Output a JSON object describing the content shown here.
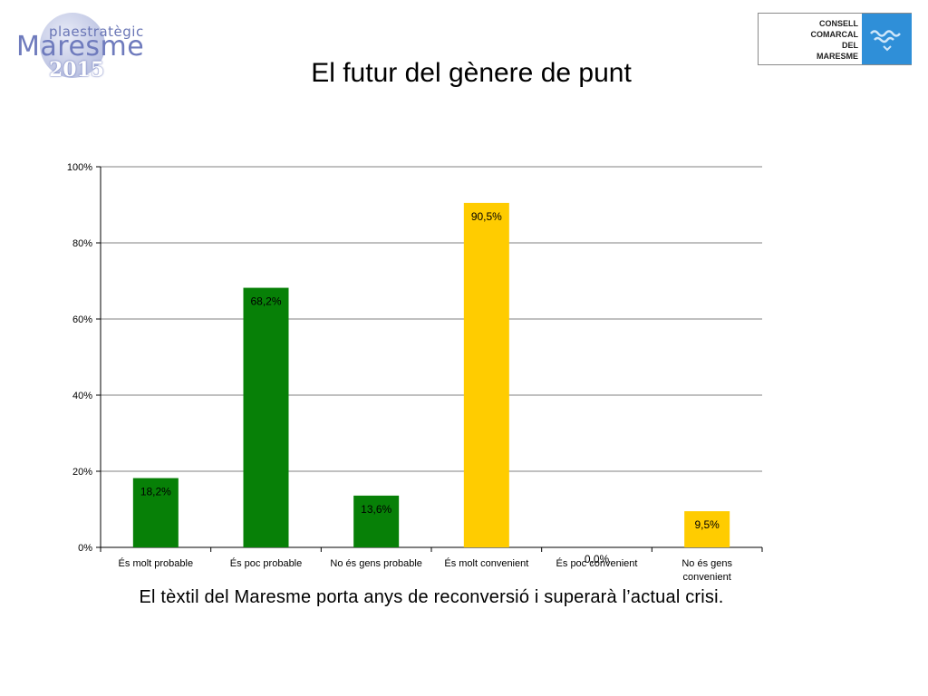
{
  "header": {
    "title": "El futur del gènere de punt",
    "logo_left": {
      "top_word": "plaestratègic",
      "main_word": "Maresme",
      "year": "2015"
    },
    "logo_right": {
      "lines": [
        "CONSELL",
        "COMARCAL",
        "DEL",
        "MARESME"
      ]
    }
  },
  "caption": "El tèxtil del Maresme porta anys de reconversió i superarà l’actual crisi.",
  "colors": {
    "green": "#078007",
    "yellow": "#FFCC00",
    "grid": "#808080"
  },
  "chart_data": {
    "type": "bar",
    "categories": [
      [
        "És molt probable"
      ],
      [
        "És poc probable"
      ],
      [
        "No és gens probable"
      ],
      [
        "És molt convenient"
      ],
      [
        "És poc convenient"
      ],
      [
        "No és gens",
        "convenient"
      ]
    ],
    "values": [
      18.2,
      68.2,
      13.6,
      90.5,
      0.0,
      9.5
    ],
    "data_labels": [
      "18,2%",
      "68,2%",
      "13,6%",
      "90,5%",
      "0,0%",
      "9,5%"
    ],
    "bar_colors": [
      "green",
      "green",
      "green",
      "yellow",
      "yellow",
      "yellow"
    ],
    "ylim": [
      0,
      100
    ],
    "y_ticks": [
      0,
      20,
      40,
      60,
      80,
      100
    ],
    "y_tick_labels": [
      "0%",
      "20%",
      "40%",
      "60%",
      "80%",
      "100%"
    ],
    "grid": true,
    "xlabel": "",
    "ylabel": ""
  }
}
